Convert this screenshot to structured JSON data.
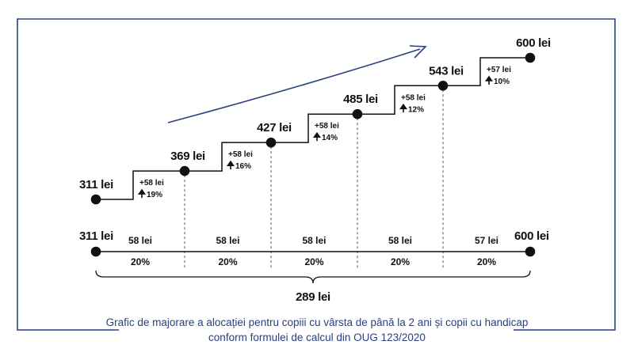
{
  "caption": {
    "line1": "Grafic de majorare a alocației pentru copiii cu vârsta de până la 2 ani și copii cu handicap",
    "line2": "conform formulei de calcul din OUG 123/2020"
  },
  "colors": {
    "frame": "#2a3f7f",
    "trend_arrow": "#2a3f7f",
    "line": "#111111",
    "dot": "#111111"
  },
  "chart_data": {
    "type": "line",
    "title": "",
    "points": [
      "311 lei",
      "369 lei",
      "427 lei",
      "485 lei",
      "543 lei",
      "600 lei"
    ],
    "values": [
      311,
      369,
      427,
      485,
      543,
      600
    ],
    "increases": [
      {
        "amount": "+58 lei",
        "percent": "19%"
      },
      {
        "amount": "+58 lei",
        "percent": "16%"
      },
      {
        "amount": "+58 lei",
        "percent": "14%"
      },
      {
        "amount": "+58 lei",
        "percent": "12%"
      },
      {
        "amount": "+57 lei",
        "percent": "10%"
      }
    ],
    "timeline": {
      "start_label": "311 lei",
      "end_label": "600 lei",
      "segments": [
        {
          "amount": "58 lei",
          "percent": "20%"
        },
        {
          "amount": "58 lei",
          "percent": "20%"
        },
        {
          "amount": "58 lei",
          "percent": "20%"
        },
        {
          "amount": "58 lei",
          "percent": "20%"
        },
        {
          "amount": "57 lei",
          "percent": "20%"
        }
      ],
      "total_label": "289 lei"
    }
  }
}
